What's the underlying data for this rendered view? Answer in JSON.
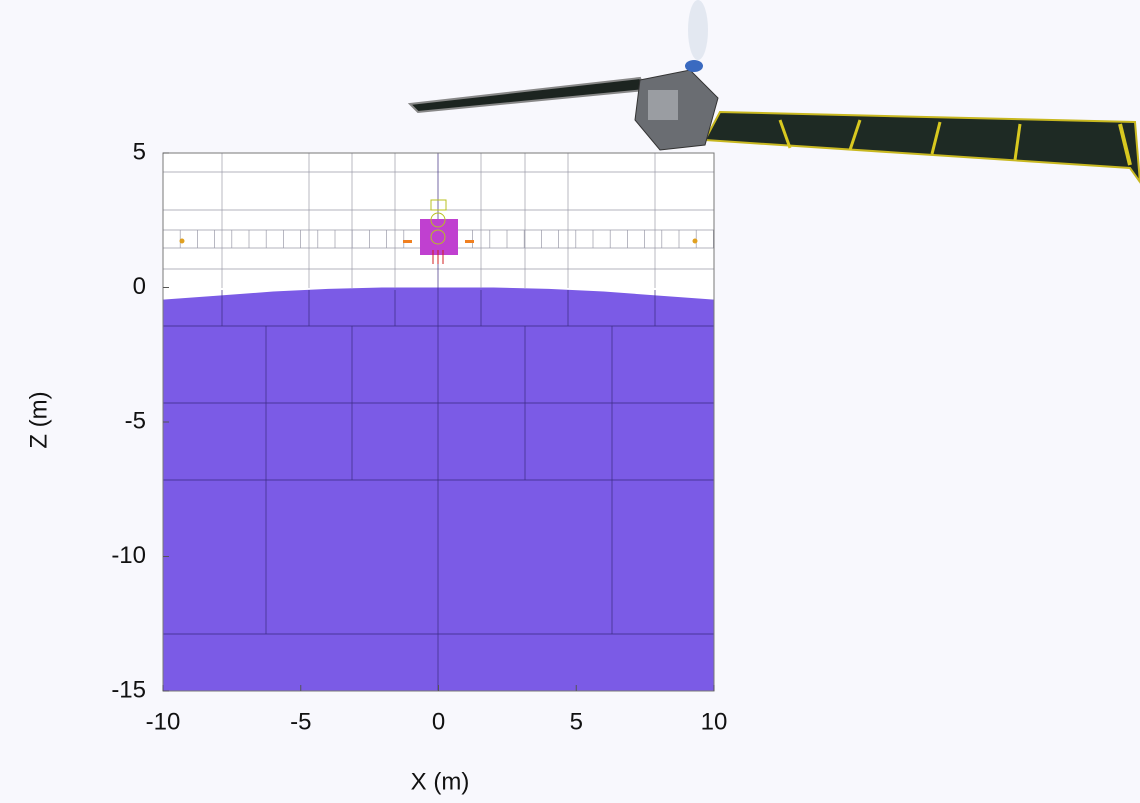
{
  "chart_data": {
    "type": "area",
    "x_label": "X (m)",
    "y_label": "Z (m)",
    "x": [
      -10,
      -8,
      -6,
      -4,
      -2,
      0,
      2,
      4,
      6,
      8,
      10
    ],
    "values": [
      -0.45,
      -0.3,
      -0.15,
      -0.05,
      0,
      0,
      0,
      -0.05,
      -0.15,
      -0.3,
      -0.45
    ],
    "color": "#7b5be6",
    "xlim": [
      -10,
      10
    ],
    "ylim": [
      -15,
      5
    ],
    "xticks": [
      -10,
      -5,
      0,
      5,
      10
    ],
    "yticks": [
      5,
      0,
      -5,
      -10,
      -15
    ]
  }
}
